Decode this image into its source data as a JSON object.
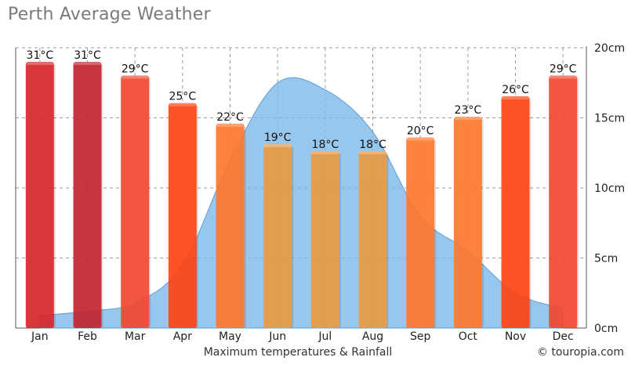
{
  "title": "Perth Average Weather",
  "caption": "Maximum temperatures & Rainfall",
  "credit": "© touropia.com",
  "chart_data": {
    "type": "bar",
    "categories": [
      "Jan",
      "Feb",
      "Mar",
      "Apr",
      "May",
      "Jun",
      "Jul",
      "Aug",
      "Sep",
      "Oct",
      "Nov",
      "Dec"
    ],
    "series": [
      {
        "kind": "bar",
        "values": [
          31,
          31,
          29,
          25,
          22,
          19,
          18,
          18,
          20,
          23,
          26,
          29
        ],
        "labels": [
          "31°C",
          "31°C",
          "29°C",
          "25°C",
          "22°C",
          "19°C",
          "18°C",
          "18°C",
          "20°C",
          "23°C",
          "26°C",
          "29°C"
        ],
        "colors": [
          "#d8282c",
          "#c72630",
          "#f34a32",
          "#ff4515",
          "#ff7a2f",
          "#ec9b45",
          "#ec9b45",
          "#ec9b45",
          "#ff7a2f",
          "#ff7a2f",
          "#ff4515",
          "#f34a32"
        ]
      },
      {
        "kind": "area",
        "values": [
          0.9,
          1.2,
          1.8,
          4.5,
          12.0,
          17.5,
          17.0,
          14.0,
          8.0,
          5.5,
          2.5,
          1.4
        ],
        "color": "#7bb7e8"
      }
    ],
    "y2_ticks": [
      "0cm",
      "5cm",
      "10cm",
      "15cm",
      "20cm"
    ],
    "y2lim": [
      0,
      20
    ],
    "grid": true
  }
}
